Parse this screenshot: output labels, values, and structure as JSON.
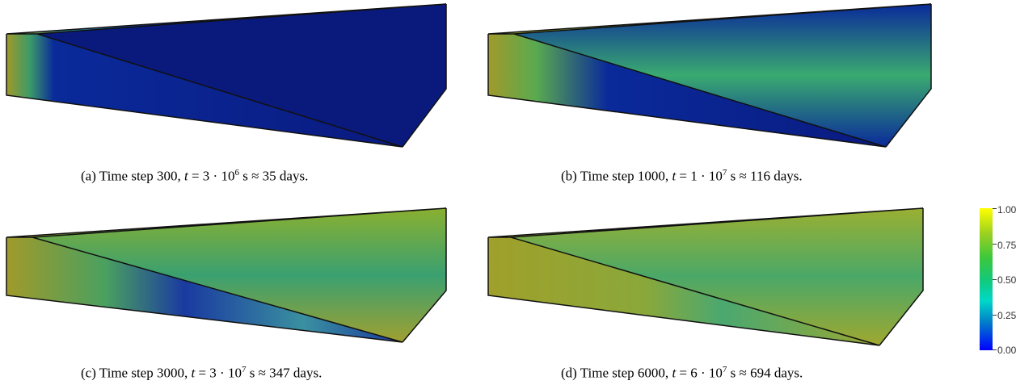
{
  "captions": {
    "a": {
      "prefix": "(a) Time step 300, ",
      "var": "t",
      "eq": " = 3 · 10",
      "exp": "6",
      "unit": " s ≈ 35 days."
    },
    "b": {
      "prefix": "(b) Time step 1000, ",
      "var": "t",
      "eq": " = 1 · 10",
      "exp": "7",
      "unit": " s ≈ 116 days."
    },
    "c": {
      "prefix": "(c) Time step 3000, ",
      "var": "t",
      "eq": " = 3 · 10",
      "exp": "7",
      "unit": " s ≈ 347 days."
    },
    "d": {
      "prefix": "(d) Time step 6000, ",
      "var": "t",
      "eq": " = 6 · 10",
      "exp": "7",
      "unit": " s ≈ 694 days."
    }
  },
  "colorbar": {
    "ticks": [
      "1.00",
      "0.75",
      "0.50",
      "0.25",
      "0.00"
    ],
    "colors": {
      "low": "#0000ff",
      "mid": "#14c878",
      "high": "#ffff00"
    }
  },
  "panels": [
    {
      "id": "a",
      "fill_fraction": 0.08,
      "dominant": "#0a1e8c"
    },
    {
      "id": "b",
      "fill_fraction": 0.25,
      "dominant": "#0a1e8c"
    },
    {
      "id": "c",
      "fill_fraction": 0.6,
      "dominant": "#8ca020"
    },
    {
      "id": "d",
      "fill_fraction": 0.85,
      "dominant": "#a0aa28"
    }
  ]
}
